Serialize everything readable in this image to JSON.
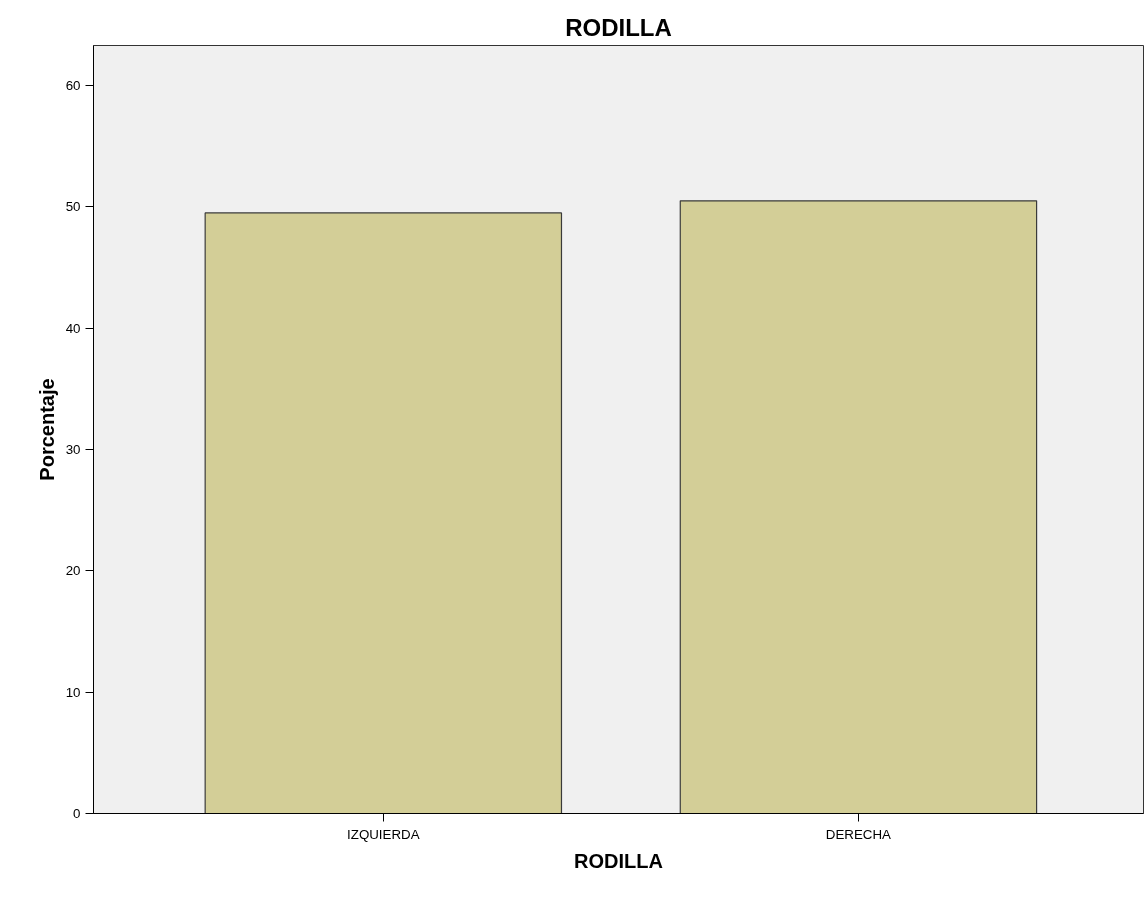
{
  "chart_data": {
    "type": "bar",
    "title": "RODILLA",
    "xlabel": "RODILLA",
    "ylabel": "Porcentaje",
    "categories": [
      "IZQUIERDA",
      "DERECHA"
    ],
    "values": [
      49.5,
      50.5
    ],
    "color": "#d3ce97",
    "ylim": [
      0,
      63.3
    ],
    "yticks": [
      0,
      10,
      20,
      30,
      40,
      50,
      60
    ],
    "grid": false
  }
}
